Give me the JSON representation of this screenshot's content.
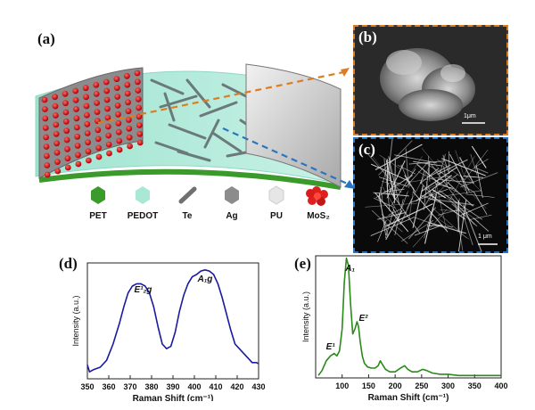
{
  "panels": {
    "a": {
      "label": "(a)"
    },
    "b": {
      "label": "(b)",
      "scale_bar": "1μm"
    },
    "c": {
      "label": "(c)",
      "scale_bar": "1 μm"
    },
    "d": {
      "label": "(d)"
    },
    "e": {
      "label": "(e)"
    }
  },
  "legend": [
    {
      "label": "PET",
      "color": "#3a9a2a",
      "icon": "hexagon-icon"
    },
    {
      "label": "PEDOT",
      "color": "#a8e8d4",
      "icon": "hexagon-icon"
    },
    {
      "label": "Te",
      "color": "#707070",
      "icon": "rod-icon"
    },
    {
      "label": "Ag",
      "color": "#8c8c8c",
      "icon": "hexagon-icon"
    },
    {
      "label": "PU",
      "color": "#e6e6e6",
      "icon": "hexagon-icon"
    },
    {
      "label": "MoS₂",
      "color": "#e02020",
      "icon": "flower-icon"
    }
  ],
  "colors": {
    "orange_frame": "#e07c20",
    "blue_frame": "#2a74c0",
    "blue_line": "#1a1aa0",
    "green_line": "#2a8a1a"
  },
  "chart_data": [
    {
      "type": "line",
      "panel": "d",
      "xlabel": "Raman Shift (cm⁻¹)",
      "ylabel": "Intensity (a.u.)",
      "xlim": [
        350,
        430
      ],
      "xticks": [
        350,
        360,
        370,
        380,
        390,
        400,
        410,
        420,
        430
      ],
      "annotations": [
        {
          "text": "E¹₂g",
          "x": 376
        },
        {
          "text": "A₁g",
          "x": 405
        }
      ],
      "series": [
        {
          "color": "#1a1aa0",
          "x": [
            350,
            351,
            353,
            356,
            359,
            362,
            365,
            367,
            369,
            371,
            373,
            375,
            377,
            379,
            381,
            383,
            385,
            387,
            389,
            391,
            393,
            395,
            397,
            399,
            401,
            403,
            405,
            407,
            409,
            411,
            413,
            415,
            417,
            419,
            421,
            423,
            425,
            427,
            429,
            430
          ],
          "y": [
            0.12,
            0.06,
            0.08,
            0.1,
            0.16,
            0.3,
            0.48,
            0.62,
            0.74,
            0.8,
            0.82,
            0.82,
            0.8,
            0.74,
            0.62,
            0.45,
            0.3,
            0.26,
            0.28,
            0.4,
            0.58,
            0.72,
            0.82,
            0.88,
            0.9,
            0.93,
            0.94,
            0.93,
            0.9,
            0.82,
            0.7,
            0.56,
            0.42,
            0.3,
            0.26,
            0.22,
            0.18,
            0.14,
            0.14,
            0.13
          ]
        }
      ]
    },
    {
      "type": "line",
      "panel": "e",
      "xlabel": "Raman Shift (cm⁻¹)",
      "ylabel": "Intensity (a.u.)",
      "xlim": [
        50,
        400
      ],
      "xticks": [
        100,
        150,
        200,
        250,
        300,
        350,
        400
      ],
      "annotations": [
        {
          "text": "A₁",
          "x": 115
        },
        {
          "text": "E¹",
          "x": 88
        },
        {
          "text": "E²",
          "x": 140
        }
      ],
      "series": [
        {
          "color": "#2a8a1a",
          "x": [
            55,
            62,
            70,
            78,
            85,
            90,
            95,
            100,
            104,
            108,
            112,
            116,
            120,
            124,
            128,
            131,
            134,
            138,
            142,
            148,
            155,
            162,
            168,
            172,
            176,
            182,
            190,
            200,
            210,
            218,
            224,
            232,
            242,
            252,
            260,
            270,
            285,
            300,
            320,
            340,
            360,
            380,
            400
          ],
          "y": [
            0.02,
            0.06,
            0.14,
            0.18,
            0.2,
            0.18,
            0.22,
            0.4,
            0.78,
            0.98,
            0.92,
            0.6,
            0.36,
            0.4,
            0.46,
            0.42,
            0.3,
            0.18,
            0.12,
            0.09,
            0.08,
            0.08,
            0.1,
            0.14,
            0.11,
            0.07,
            0.05,
            0.05,
            0.08,
            0.1,
            0.07,
            0.05,
            0.05,
            0.07,
            0.06,
            0.04,
            0.03,
            0.03,
            0.02,
            0.02,
            0.02,
            0.02,
            0.02
          ]
        }
      ]
    }
  ]
}
